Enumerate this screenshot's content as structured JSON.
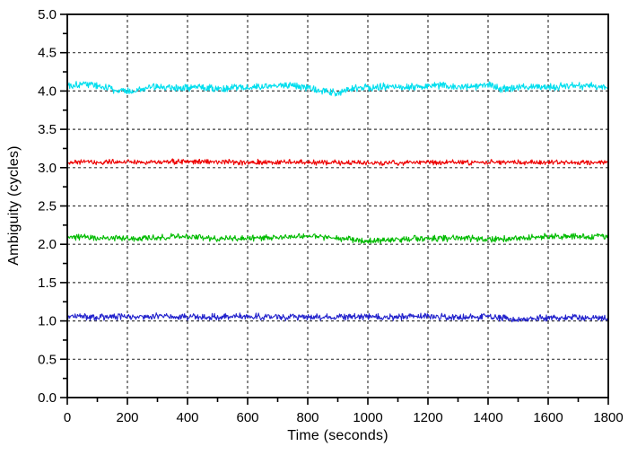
{
  "chart_data": {
    "type": "line",
    "title": "",
    "xlabel": "Time (seconds)",
    "ylabel": "Ambiguity (cycles)",
    "xlim": [
      0,
      1800
    ],
    "ylim": [
      0.0,
      5.0
    ],
    "x_major_tick_step": 200,
    "x_minor_tick_step": 100,
    "y_major_tick_step": 0.5,
    "y_minor_tick_step": 0.25,
    "x_tick_labels": [
      "0",
      "200",
      "400",
      "600",
      "800",
      "1000",
      "1200",
      "1400",
      "1600",
      "1800"
    ],
    "y_tick_labels": [
      "0.0",
      "0.5",
      "1.0",
      "1.5",
      "2.0",
      "2.5",
      "3.0",
      "3.5",
      "4.0",
      "4.5",
      "5.0"
    ],
    "grid": {
      "style": "dashed",
      "color": "#3c3c3c",
      "x_lines": [
        200,
        400,
        600,
        800,
        1000,
        1200,
        1400,
        1600
      ],
      "y_lines": [
        0.5,
        1.0,
        1.5,
        2.0,
        2.5,
        3.0,
        3.5,
        4.0,
        4.5
      ]
    },
    "legend": null,
    "frame_color": "#000000",
    "series": [
      {
        "name": "series-cyan",
        "color": "#00DEEE",
        "mean": 4.05,
        "noise_halfband": 0.045,
        "seed": 101,
        "anchors": [
          [
            0,
            4.07
          ],
          [
            60,
            4.1
          ],
          [
            120,
            4.05
          ],
          [
            180,
            4.0
          ],
          [
            210,
            3.99
          ],
          [
            260,
            4.04
          ],
          [
            320,
            4.06
          ],
          [
            380,
            4.04
          ],
          [
            440,
            4.06
          ],
          [
            500,
            4.03
          ],
          [
            560,
            4.05
          ],
          [
            620,
            4.04
          ],
          [
            680,
            4.07
          ],
          [
            740,
            4.07
          ],
          [
            800,
            4.04
          ],
          [
            860,
            3.99
          ],
          [
            900,
            3.98
          ],
          [
            950,
            4.03
          ],
          [
            1000,
            4.04
          ],
          [
            1060,
            4.06
          ],
          [
            1120,
            4.06
          ],
          [
            1180,
            4.04
          ],
          [
            1240,
            4.08
          ],
          [
            1300,
            4.05
          ],
          [
            1360,
            4.07
          ],
          [
            1400,
            4.09
          ],
          [
            1440,
            4.03
          ],
          [
            1500,
            4.04
          ],
          [
            1560,
            4.05
          ],
          [
            1620,
            4.05
          ],
          [
            1680,
            4.07
          ],
          [
            1740,
            4.06
          ],
          [
            1800,
            4.05
          ]
        ]
      },
      {
        "name": "series-red",
        "color": "#EE0000",
        "mean": 3.07,
        "noise_halfband": 0.03,
        "seed": 202,
        "anchors": [
          [
            0,
            3.07
          ],
          [
            200,
            3.07
          ],
          [
            400,
            3.08
          ],
          [
            600,
            3.07
          ],
          [
            800,
            3.07
          ],
          [
            1000,
            3.06
          ],
          [
            1200,
            3.07
          ],
          [
            1400,
            3.07
          ],
          [
            1600,
            3.07
          ],
          [
            1800,
            3.07
          ]
        ]
      },
      {
        "name": "series-green",
        "color": "#00BB00",
        "mean": 2.08,
        "noise_halfband": 0.035,
        "seed": 303,
        "anchors": [
          [
            0,
            2.1
          ],
          [
            100,
            2.08
          ],
          [
            200,
            2.07
          ],
          [
            300,
            2.09
          ],
          [
            360,
            2.1
          ],
          [
            420,
            2.09
          ],
          [
            500,
            2.07
          ],
          [
            600,
            2.08
          ],
          [
            700,
            2.09
          ],
          [
            760,
            2.1
          ],
          [
            820,
            2.11
          ],
          [
            880,
            2.08
          ],
          [
            950,
            2.06
          ],
          [
            1000,
            2.04
          ],
          [
            1060,
            2.05
          ],
          [
            1120,
            2.07
          ],
          [
            1200,
            2.08
          ],
          [
            1300,
            2.08
          ],
          [
            1400,
            2.07
          ],
          [
            1500,
            2.08
          ],
          [
            1600,
            2.1
          ],
          [
            1700,
            2.1
          ],
          [
            1800,
            2.11
          ]
        ]
      },
      {
        "name": "series-blue",
        "color": "#2222CC",
        "mean": 1.05,
        "noise_halfband": 0.038,
        "seed": 404,
        "anchors": [
          [
            0,
            1.06
          ],
          [
            100,
            1.05
          ],
          [
            200,
            1.05
          ],
          [
            300,
            1.06
          ],
          [
            400,
            1.05
          ],
          [
            500,
            1.05
          ],
          [
            600,
            1.06
          ],
          [
            700,
            1.05
          ],
          [
            800,
            1.05
          ],
          [
            900,
            1.05
          ],
          [
            1000,
            1.05
          ],
          [
            1100,
            1.05
          ],
          [
            1200,
            1.06
          ],
          [
            1300,
            1.05
          ],
          [
            1400,
            1.06
          ],
          [
            1500,
            1.02
          ],
          [
            1560,
            1.03
          ],
          [
            1600,
            1.04
          ],
          [
            1700,
            1.04
          ],
          [
            1800,
            1.03
          ]
        ]
      }
    ]
  }
}
